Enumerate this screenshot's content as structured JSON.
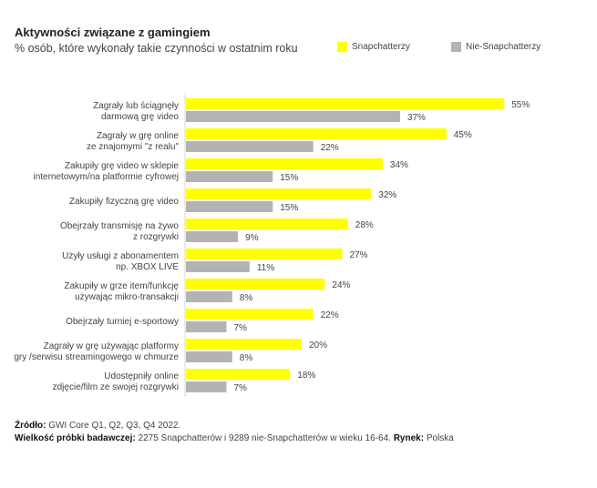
{
  "chart_data": {
    "type": "bar",
    "orientation": "horizontal",
    "title": "Aktywności związane z gamingiem",
    "subtitle": "% osób, które wykonały takie czynności w ostatnim roku",
    "categories": [
      [
        "Zagrały lub ściągnęły",
        "darmową grę video"
      ],
      [
        "Zagrały w grę online",
        "ze znajomymi \"z realu\""
      ],
      [
        "Zakupiły grę video w sklepie",
        "internetowym/na platformie cyfrowej"
      ],
      [
        "Zakupiły fizyczną grę video"
      ],
      [
        "Obejrzały transmisję na żywo",
        "z rozgrywki"
      ],
      [
        "Użyły usługi z abonamentem",
        "np. XBOX LIVE"
      ],
      [
        "Zakupiły w grze item/funkcję",
        "używając mikro-transakcji"
      ],
      [
        "Obejrzały turniej e-sportowy"
      ],
      [
        "Zagrały w grę używając platformy",
        "gry /serwisu streamingowego w chmurze"
      ],
      [
        "Udostępniły online",
        "zdjęcie/film ze swojej rozgrywki"
      ]
    ],
    "series": [
      {
        "name": "Snapchatterzy",
        "color": "#ffff00",
        "values": [
          55,
          45,
          34,
          32,
          28,
          27,
          24,
          22,
          20,
          18
        ]
      },
      {
        "name": "Nie-Snapchatterzy",
        "color": "#b3b3b3",
        "values": [
          37,
          22,
          15,
          15,
          9,
          11,
          8,
          7,
          8,
          7
        ]
      }
    ],
    "value_suffix": "%",
    "xlim": [
      0,
      60
    ],
    "grid": false,
    "legend_position": "top-right"
  },
  "footer": {
    "source_label": "Źródło:",
    "source_text": " GWI Core Q1, Q2, Q3, Q4 2022.",
    "sample_label": "Wielkość próbki badawczej:",
    "sample_text": " 2275 Snapchatterów i 9289 nie-Snapchatterów w wieku 16-64. ",
    "market_label": "Rynek:",
    "market_text": " Polska"
  }
}
